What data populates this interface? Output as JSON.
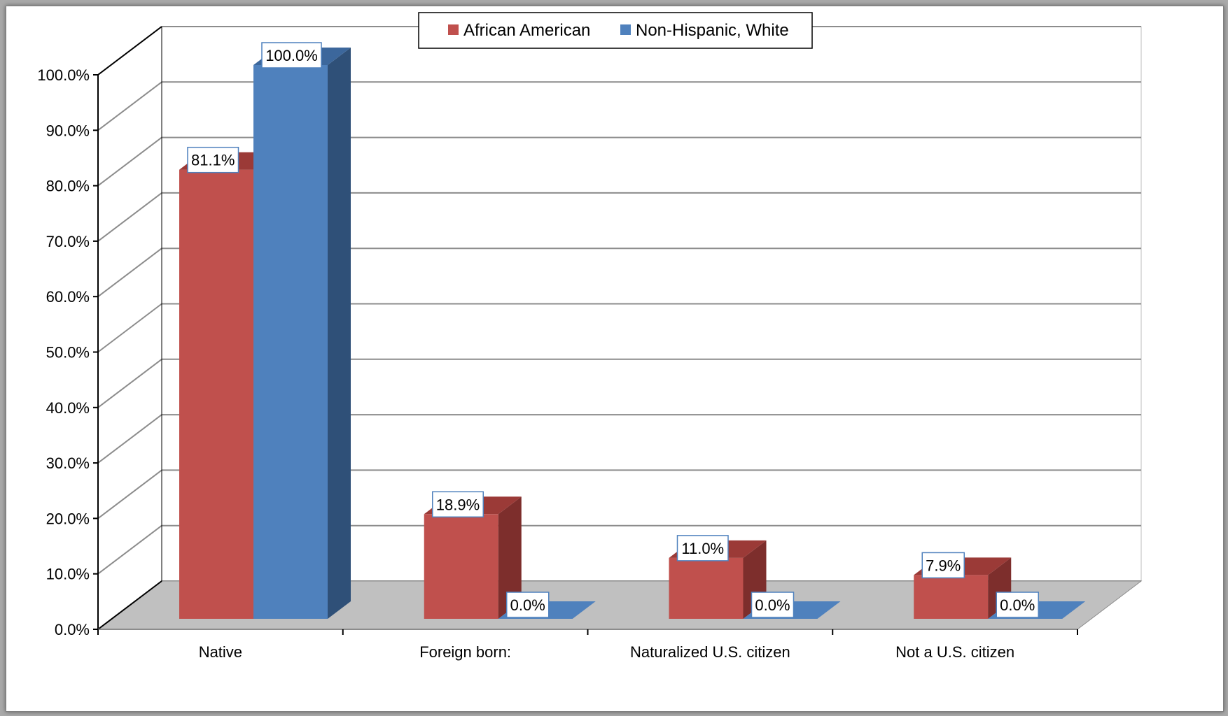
{
  "chart_data": {
    "type": "bar",
    "categories": [
      "Native",
      "Foreign born:",
      "Naturalized U.S. citizen",
      "Not a U.S. citizen"
    ],
    "series": [
      {
        "name": "African American",
        "values": [
          81.1,
          18.9,
          11.0,
          7.9
        ],
        "labels": [
          "81.1%",
          "18.9%",
          "11.0%",
          "7.9%"
        ]
      },
      {
        "name": "Non-Hispanic, White",
        "values": [
          100.0,
          0.0,
          0.0,
          0.0
        ],
        "labels": [
          "100.0%",
          "0.0%",
          "0.0%",
          "0.0%"
        ]
      }
    ],
    "ylim": [
      0,
      100
    ],
    "y_ticks": [
      "0.0%",
      "10.0%",
      "20.0%",
      "30.0%",
      "40.0%",
      "50.0%",
      "60.0%",
      "70.0%",
      "80.0%",
      "90.0%",
      "100.0%"
    ],
    "grid": true,
    "legend_position": "top-center",
    "style": "3d-clustered-column"
  },
  "colors": {
    "african_american": "#c0504d",
    "african_american_side": "#7d2e2c",
    "african_american_top": "#9b3a37",
    "white": "#4f81bd",
    "white_side": "#2f5078",
    "white_top": "#3c679c",
    "floor": "#c0c0c0",
    "grid": "#8c8c8c",
    "label_border": "#4f81bd"
  }
}
